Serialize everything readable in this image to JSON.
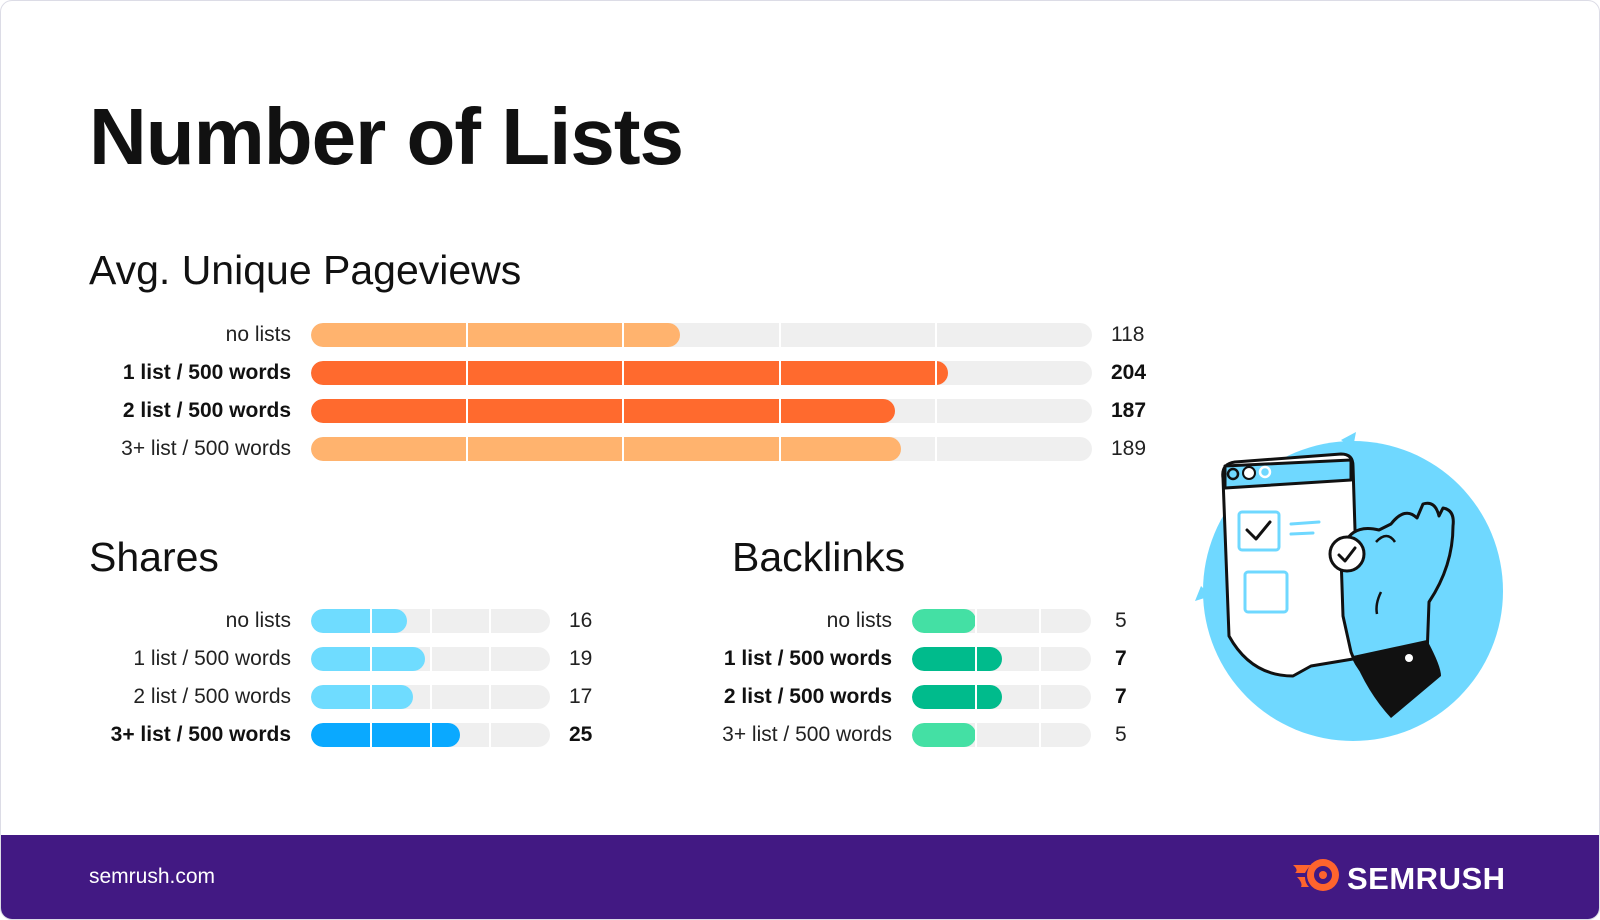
{
  "title": "Number of Lists",
  "footer": {
    "url": "semrush.com",
    "brand": "SEMRUSH"
  },
  "icons": {
    "brand_logo": "semrush-flame-icon",
    "illustration": "browser-window-ok-hand-icon"
  },
  "colors": {
    "light_orange": "#ffb36e",
    "orange": "#ff6a2e",
    "light_blue": "#6fdcff",
    "blue": "#0aa9ff",
    "light_green": "#44e0a4",
    "green": "#00bb8c",
    "track": "#efefef",
    "footer_bg": "#421983",
    "illustration_blue": "#6fd8ff"
  },
  "chart_data": [
    {
      "type": "bar",
      "orientation": "horizontal",
      "title": "Avg. Unique Pageviews",
      "categories": [
        "no lists",
        "1 list / 500 words",
        "2 list / 500 words",
        "3+ list / 500 words"
      ],
      "values": [
        118,
        204,
        187,
        189
      ],
      "bold": [
        false,
        true,
        true,
        false
      ],
      "bar_colors": [
        "#ffb36e",
        "#ff6a2e",
        "#ff6a2e",
        "#ffb36e"
      ],
      "xlim": [
        0,
        250
      ],
      "gridlines": [
        50,
        100,
        150,
        200
      ]
    },
    {
      "type": "bar",
      "orientation": "horizontal",
      "title": "Shares",
      "categories": [
        "no lists",
        "1 list / 500 words",
        "2 list / 500 words",
        "3+ list / 500 words"
      ],
      "values": [
        16,
        19,
        17,
        25
      ],
      "bold": [
        false,
        false,
        false,
        true
      ],
      "bar_colors": [
        "#6fdcff",
        "#6fdcff",
        "#6fdcff",
        "#0aa9ff"
      ],
      "xlim": [
        0,
        40
      ],
      "gridlines": [
        10,
        20,
        30
      ]
    },
    {
      "type": "bar",
      "orientation": "horizontal",
      "title": "Backlinks",
      "categories": [
        "no lists",
        "1 list / 500 words",
        "2 list / 500 words",
        "3+ list / 500 words"
      ],
      "values": [
        5,
        7,
        7,
        5
      ],
      "bold": [
        false,
        true,
        true,
        false
      ],
      "bar_colors": [
        "#44e0a4",
        "#00bb8c",
        "#00bb8c",
        "#44e0a4"
      ],
      "xlim": [
        0,
        14
      ],
      "gridlines": [
        5,
        10
      ]
    }
  ]
}
